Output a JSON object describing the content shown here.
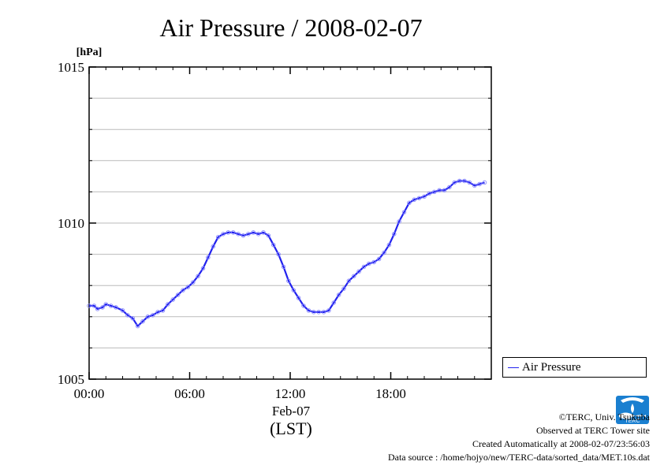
{
  "chart_data": {
    "type": "line",
    "title": "Air Pressure / 2008-02-07",
    "ylabel": "[hPa]",
    "xlabel": "(LST)",
    "x_date_label": "Feb-07",
    "ylim": [
      1005,
      1015
    ],
    "xlim": [
      0,
      24
    ],
    "yticks": [
      {
        "value": 1005,
        "label": "1005"
      },
      {
        "value": 1010,
        "label": "1010"
      },
      {
        "value": 1015,
        "label": "1015"
      }
    ],
    "xticks": [
      {
        "value": 0,
        "label": "00:00"
      },
      {
        "value": 6,
        "label": "06:00"
      },
      {
        "value": 12,
        "label": "12:00"
      },
      {
        "value": 18,
        "label": "18:00"
      }
    ],
    "grid": true,
    "legend_position": "right",
    "series": [
      {
        "name": "Air Pressure",
        "color": "#2222ee",
        "x": [
          0,
          0.3,
          0.5,
          0.8,
          1.0,
          1.3,
          1.6,
          2.0,
          2.3,
          2.6,
          2.9,
          3.2,
          3.5,
          3.8,
          4.1,
          4.4,
          4.7,
          5.0,
          5.3,
          5.6,
          5.9,
          6.2,
          6.5,
          6.8,
          7.1,
          7.4,
          7.7,
          8.0,
          8.3,
          8.6,
          8.9,
          9.2,
          9.5,
          9.8,
          10.1,
          10.4,
          10.7,
          11.0,
          11.3,
          11.6,
          11.9,
          12.2,
          12.5,
          12.8,
          13.1,
          13.4,
          13.7,
          14.0,
          14.3,
          14.6,
          14.9,
          15.2,
          15.5,
          15.8,
          16.1,
          16.4,
          16.7,
          17.0,
          17.3,
          17.6,
          17.9,
          18.2,
          18.5,
          18.8,
          19.1,
          19.4,
          19.7,
          20.0,
          20.3,
          20.6,
          20.9,
          21.2,
          21.5,
          21.8,
          22.1,
          22.4,
          22.7,
          23.0,
          23.3,
          23.6
        ],
        "y": [
          1007.35,
          1007.35,
          1007.25,
          1007.3,
          1007.4,
          1007.35,
          1007.3,
          1007.2,
          1007.05,
          1006.95,
          1006.7,
          1006.85,
          1007.0,
          1007.05,
          1007.15,
          1007.2,
          1007.4,
          1007.55,
          1007.7,
          1007.85,
          1007.95,
          1008.1,
          1008.3,
          1008.55,
          1008.9,
          1009.25,
          1009.55,
          1009.65,
          1009.7,
          1009.7,
          1009.65,
          1009.6,
          1009.65,
          1009.7,
          1009.65,
          1009.7,
          1009.6,
          1009.3,
          1009.0,
          1008.6,
          1008.15,
          1007.85,
          1007.6,
          1007.35,
          1007.2,
          1007.15,
          1007.15,
          1007.15,
          1007.2,
          1007.45,
          1007.7,
          1007.9,
          1008.15,
          1008.3,
          1008.45,
          1008.6,
          1008.7,
          1008.75,
          1008.85,
          1009.05,
          1009.3,
          1009.65,
          1010.05,
          1010.35,
          1010.65,
          1010.75,
          1010.8,
          1010.85,
          1010.95,
          1011.0,
          1011.05,
          1011.05,
          1011.15,
          1011.3,
          1011.35,
          1011.35,
          1011.3,
          1011.2,
          1011.25,
          1011.3
        ]
      }
    ]
  },
  "credits": {
    "copyright": "©TERC, Univ. Tsukuba",
    "site": "Observed at TERC Tower site",
    "created": "Created Automatically at 2008-02-07/23:56:03",
    "source": "Data source : /home/hojyo/new/TERC-data/sorted_data/MET.10s.dat"
  },
  "logo": {
    "name": "terc-logo-icon",
    "text": "TERC",
    "color": "#1a7fd0"
  }
}
